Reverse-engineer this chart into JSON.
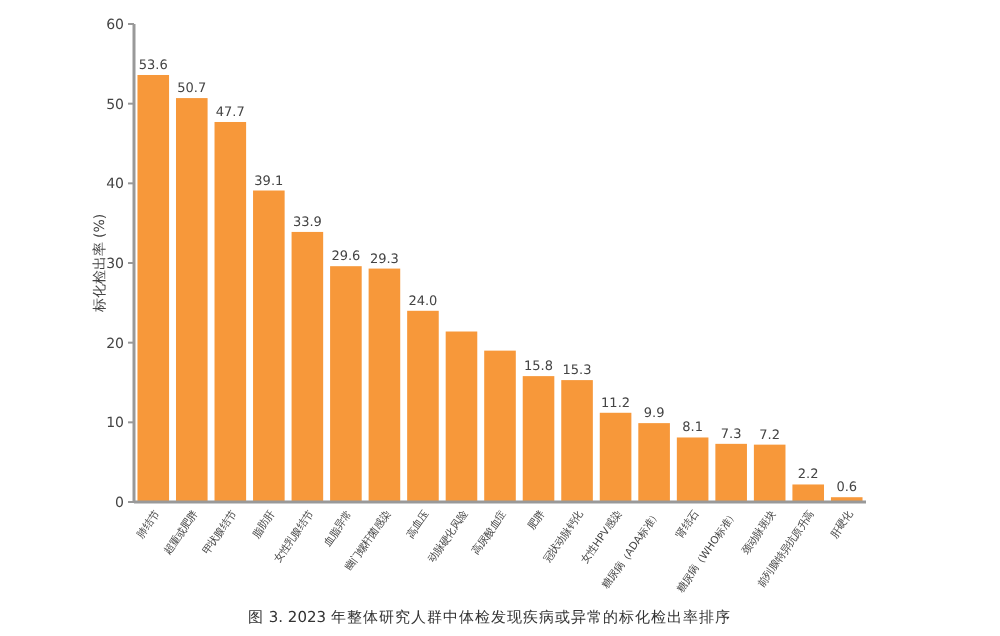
{
  "chart_data": {
    "type": "bar",
    "ylabel": "标化检出率 (%)",
    "categories": [
      "肺结节",
      "超重或肥胖",
      "甲状腺结节",
      "脂肪肝",
      "女性乳腺结节",
      "血脂异常",
      "幽门螺杆菌感染",
      "高血压",
      "动脉硬化风险",
      "高尿酸血症",
      "肥胖",
      "冠状动脉钙化",
      "女性HPV感染",
      "糖尿病（ADA标准）",
      "肾结石",
      "糖尿病（WHO标准）",
      "颈动脉斑块",
      "前列腺特异抗原升高",
      "肝硬化"
    ],
    "values": [
      53.6,
      50.7,
      47.7,
      39.1,
      33.9,
      29.6,
      29.3,
      24.0,
      21.4,
      19.0,
      15.8,
      15.3,
      11.2,
      9.9,
      8.1,
      7.3,
      7.2,
      2.2,
      0.6
    ],
    "value_labels": [
      "53.6",
      "50.7",
      "47.7",
      "39.1",
      "33.9",
      "29.6",
      "29.3",
      "24.0",
      null,
      null,
      "15.8",
      "15.3",
      "11.2",
      "9.9",
      "8.1",
      "7.3",
      "7.2",
      "2.2",
      "0.6"
    ],
    "color": "#f7983a",
    "ylim": [
      0,
      60
    ],
    "yticks": [
      0,
      10,
      20,
      30,
      40,
      50,
      60
    ],
    "grid": false,
    "annotations": [
      "图 3. 2023 年整体研究人群中体检发现疾病或异常的标化检出率排序"
    ]
  }
}
